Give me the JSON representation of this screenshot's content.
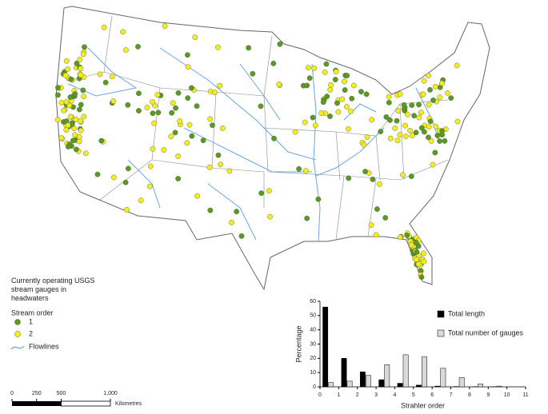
{
  "legend": {
    "title": "Currently operating USGS stream gauges in headwaters",
    "subtitle": "Stream order",
    "items": [
      {
        "label": "1",
        "color": "#5a9a1e"
      },
      {
        "label": "2",
        "color": "#f2ee1c"
      }
    ],
    "flowlines": "Flowlines"
  },
  "scale_bar": {
    "ticks": [
      0,
      250,
      500,
      {
        "value": 1000,
        "label": "1,000"
      }
    ],
    "unit": "Kilometres"
  },
  "chart_data": {
    "type": "histogram",
    "x_label": "Strahler order",
    "y_label": "Percentage",
    "bins": [
      0,
      1,
      2,
      3,
      4,
      5,
      6,
      7,
      8,
      9,
      10
    ],
    "series": [
      {
        "name": "Total length",
        "color": "#000000",
        "values": [
          56,
          20,
          10.5,
          5,
          2.5,
          1.2,
          0.5,
          0.2,
          0.1,
          0.05
        ]
      },
      {
        "name": "Total number of gauges",
        "color": "#d9d9d9",
        "values": [
          3,
          4,
          8,
          15.5,
          22.5,
          21,
          13,
          6.5,
          2,
          0.5
        ]
      }
    ],
    "xlim": [
      0,
      11
    ],
    "xticks": [
      0,
      1,
      2,
      3,
      4,
      5,
      6,
      7,
      8,
      9,
      10,
      11
    ],
    "ylim": [
      0,
      60
    ],
    "yticks": [
      0,
      10,
      20,
      30,
      40,
      50,
      60
    ]
  }
}
